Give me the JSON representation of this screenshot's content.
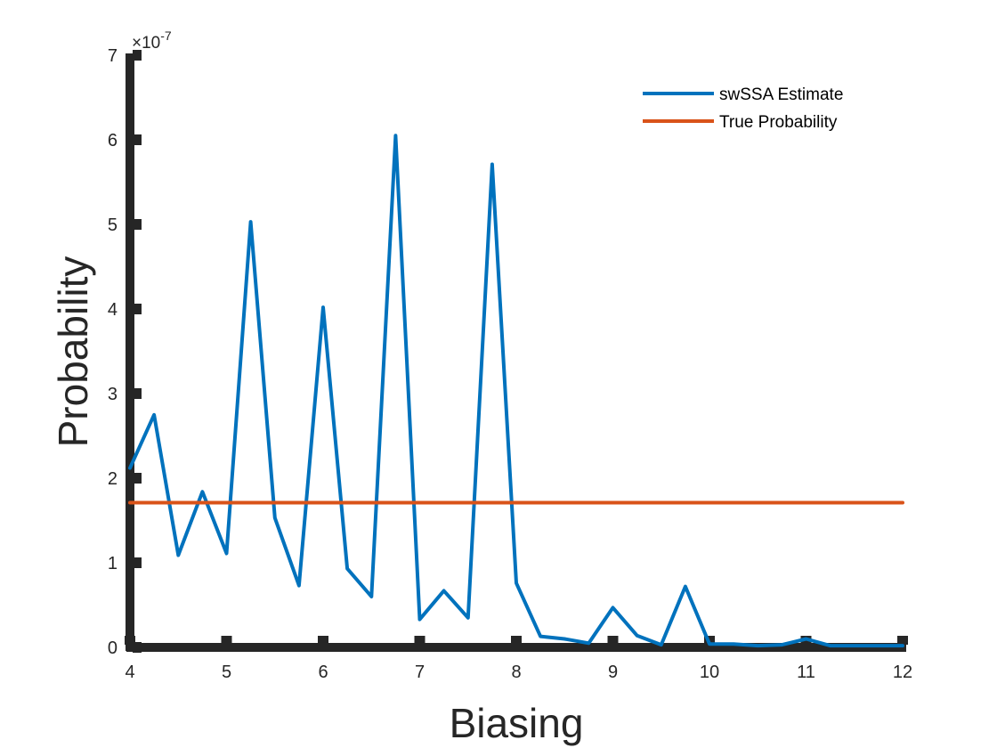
{
  "chart_data": {
    "type": "line",
    "xlabel": "Biasing",
    "ylabel": "Probability",
    "y_exponent_base": "×10",
    "y_exponent_power": "-7",
    "xlim": [
      4,
      12
    ],
    "ylim": [
      0,
      7
    ],
    "xticks": [
      4,
      5,
      6,
      7,
      8,
      9,
      10,
      11,
      12
    ],
    "yticks": [
      0,
      1,
      2,
      3,
      4,
      5,
      6,
      7
    ],
    "xtick_labels": [
      "4",
      "5",
      "6",
      "7",
      "8",
      "9",
      "10",
      "11",
      "12"
    ],
    "ytick_labels": [
      "0",
      "1",
      "2",
      "3",
      "4",
      "5",
      "6",
      "7"
    ],
    "legend_position": "top-right",
    "grid": false,
    "series": [
      {
        "name": "swSSA Estimate",
        "color": "#0072BD",
        "x": [
          4,
          4.25,
          4.5,
          4.75,
          5,
          5.25,
          5.5,
          5.75,
          6,
          6.25,
          6.5,
          6.75,
          7,
          7.25,
          7.5,
          7.75,
          8,
          8.25,
          8.5,
          8.75,
          9,
          9.25,
          9.5,
          9.75,
          10,
          10.25,
          10.5,
          10.75,
          11,
          11.25,
          11.5,
          11.75,
          12
        ],
        "values": [
          2.12,
          2.75,
          1.09,
          1.84,
          1.11,
          5.03,
          1.53,
          0.73,
          4.02,
          0.93,
          0.6,
          6.05,
          0.33,
          0.67,
          0.35,
          5.71,
          0.76,
          0.13,
          0.1,
          0.05,
          0.47,
          0.14,
          0.03,
          0.72,
          0.04,
          0.04,
          0.02,
          0.03,
          0.1,
          0.02,
          0.02,
          0.02,
          0.02
        ]
      },
      {
        "name": "True Probability",
        "color": "#D95319",
        "x": [
          4,
          12
        ],
        "values": [
          1.71,
          1.71
        ]
      }
    ]
  }
}
